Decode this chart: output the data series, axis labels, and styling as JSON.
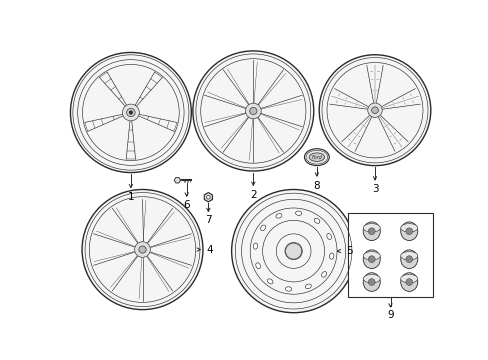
{
  "bg_color": "#ffffff",
  "line_color": "#2a2a2a",
  "fig_width": 4.89,
  "fig_height": 3.6,
  "dpi": 100,
  "label_fontsize": 7.5
}
